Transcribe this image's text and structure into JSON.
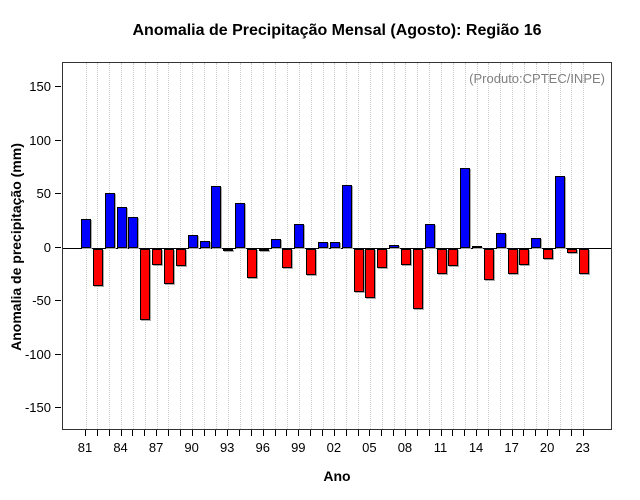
{
  "chart_data": {
    "type": "bar",
    "title": "Anomalia de Precipitação Mensal (Agosto): Região 16",
    "xlabel": "Ano",
    "ylabel": "Anomalia de precipitação (mm)",
    "annotation": "(Produto:CPTEC/INPE)",
    "years": [
      1981,
      1982,
      1983,
      1984,
      1985,
      1986,
      1987,
      1988,
      1989,
      1990,
      1991,
      1992,
      1993,
      1994,
      1995,
      1996,
      1997,
      1998,
      1999,
      2000,
      2001,
      2002,
      2003,
      2004,
      2005,
      2006,
      2007,
      2008,
      2009,
      2010,
      2011,
      2012,
      2013,
      2014,
      2015,
      2016,
      2017,
      2018,
      2019,
      2020,
      2021,
      2022,
      2023
    ],
    "values": [
      27,
      -35,
      51,
      38,
      29,
      -66,
      -15,
      -33,
      -16,
      12,
      7,
      58,
      -2,
      42,
      -27,
      -1,
      8,
      -18,
      22,
      -24,
      6,
      6,
      59,
      -40,
      -46,
      -18,
      3,
      -15,
      -56,
      22,
      -23,
      -16,
      75,
      2,
      -29,
      14,
      -23,
      -15,
      9,
      -9,
      67,
      -4,
      -23
    ],
    "bar_colors": {
      "positive": "#0000ff",
      "negative": "#ff0000"
    },
    "yticks": [
      -150,
      -100,
      -50,
      0,
      50,
      100,
      150
    ],
    "ylim": [
      -172,
      172
    ],
    "xtick_labels": [
      "81",
      "84",
      "87",
      "90",
      "93",
      "96",
      "99",
      "02",
      "05",
      "08",
      "11",
      "14",
      "17",
      "20",
      "23"
    ],
    "xtick_step": 3,
    "grid": "vertical-dotted",
    "legend": null
  }
}
